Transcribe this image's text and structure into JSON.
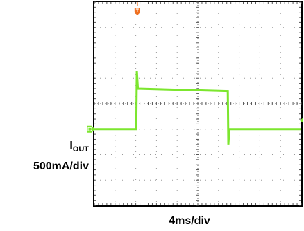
{
  "chart_data": {
    "type": "line",
    "title": "",
    "channel": {
      "name": "I",
      "name_subscript": "OUT",
      "vertical_scale": "500mA/div"
    },
    "time_scale": "4ms/div",
    "divisions": {
      "x": 10,
      "y": 8
    },
    "xlabel": "4ms/div",
    "ylabel": "",
    "xlim": [
      0,
      40
    ],
    "ylim": [
      -4,
      4
    ],
    "x_unit": "ms",
    "y_unit": "div",
    "ground_marker_level_div": -1.0,
    "trigger_marker_time_ms": 8.3,
    "series": [
      {
        "color": "#7CE62E",
        "points": [
          [
            0,
            -1.0
          ],
          [
            8.1,
            -1.0
          ],
          [
            8.2,
            1.3
          ],
          [
            8.4,
            0.6
          ],
          [
            25.8,
            0.5
          ],
          [
            25.9,
            -1.6
          ],
          [
            26.1,
            -1.0
          ],
          [
            40,
            -1.0
          ]
        ]
      }
    ],
    "grid": true,
    "legend": "none"
  }
}
